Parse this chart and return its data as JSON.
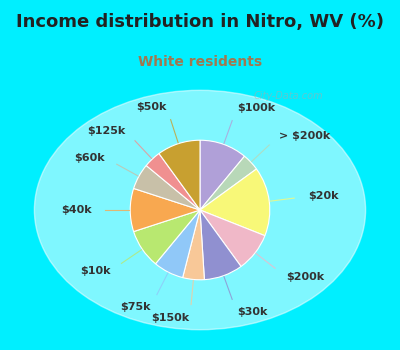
{
  "title": "Income distribution in Nitro, WV (%)",
  "subtitle": "White residents",
  "bg_color": "#00efff",
  "chart_bg": "#e8f8f0",
  "watermark": "City-Data.com",
  "slices": [
    {
      "label": "$100k",
      "value": 11,
      "color": "#b0a0d8"
    },
    {
      "label": "> $200k",
      "value": 4,
      "color": "#b8d8b8"
    },
    {
      "label": "$20k",
      "value": 16,
      "color": "#f8f878"
    },
    {
      "label": "$200k",
      "value": 9,
      "color": "#f0b8c8"
    },
    {
      "label": "$30k",
      "value": 9,
      "color": "#9090d0"
    },
    {
      "label": "$150k",
      "value": 5,
      "color": "#f8c898"
    },
    {
      "label": "$75k",
      "value": 7,
      "color": "#90c8f8"
    },
    {
      "label": "$10k",
      "value": 9,
      "color": "#b8e870"
    },
    {
      "label": "$40k",
      "value": 10,
      "color": "#f8a850"
    },
    {
      "label": "$60k",
      "value": 6,
      "color": "#c8c0a8"
    },
    {
      "label": "$125k",
      "value": 4,
      "color": "#f09090"
    },
    {
      "label": "$50k",
      "value": 10,
      "color": "#c8a030"
    }
  ],
  "label_fontsize": 8,
  "title_fontsize": 13,
  "subtitle_fontsize": 10,
  "title_color": "#222222",
  "subtitle_color": "#a07850",
  "label_color": "#333333"
}
